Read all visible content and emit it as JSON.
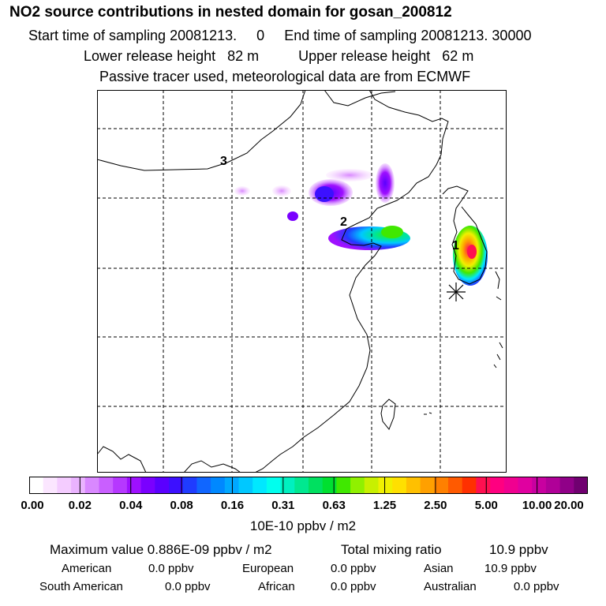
{
  "title": "NO2 source contributions in nested domain for gosan_200812",
  "header": {
    "start_label": "Start time of sampling",
    "start_value": "20081213.     0",
    "end_label": "End time of sampling",
    "end_value": "20081213. 30000",
    "lower_label": "Lower release height",
    "lower_value": "82 m",
    "upper_label": "Upper release height",
    "upper_value": "62 m",
    "tracer_note": "Passive tracer used, meteorological data are from ECMWF"
  },
  "map": {
    "markers": [
      {
        "label": "1",
        "name": "source-region-1"
      },
      {
        "label": "2",
        "name": "source-region-2"
      },
      {
        "label": "3",
        "name": "source-region-3"
      }
    ],
    "receptor_symbol": "asterisk",
    "colors": {
      "grid": "#000000",
      "coast": "#000000"
    }
  },
  "colorbar": {
    "ticks": [
      "0.00",
      "0.02",
      "0.04",
      "0.08",
      "0.16",
      "0.31",
      "0.63",
      "1.25",
      "2.50",
      "5.00",
      "10.00",
      "20.00"
    ],
    "colors": [
      "#ffffff",
      "#fbe6ff",
      "#f4ccff",
      "#eab3ff",
      "#d988ff",
      "#c95fff",
      "#b638ff",
      "#9e10ff",
      "#7a00ff",
      "#5a00ff",
      "#3c10ff",
      "#1f3cff",
      "#1066ff",
      "#0088ff",
      "#00a8ff",
      "#00c8ff",
      "#00e8ff",
      "#00ffee",
      "#00f0c0",
      "#00e890",
      "#00e060",
      "#00e030",
      "#40e800",
      "#90f000",
      "#c8f000",
      "#f0f000",
      "#ffe000",
      "#ffc000",
      "#ffa000",
      "#ff8000",
      "#ff5a00",
      "#ff3000",
      "#ff1050",
      "#ff0080",
      "#f00090",
      "#e000a0",
      "#c800a0",
      "#b00098",
      "#900088",
      "#700070"
    ],
    "units": "10E-10 ppbv / m2"
  },
  "stats": {
    "max_label": "Maximum value",
    "max_value": "0.886E-09 ppbv / m2",
    "total_label": "Total mixing ratio",
    "total_value": "10.9 ppbv"
  },
  "regions": [
    {
      "name": "American",
      "value": "0.0 ppbv"
    },
    {
      "name": "European",
      "value": "0.0 ppbv"
    },
    {
      "name": "Asian",
      "value": "10.9 ppbv"
    },
    {
      "name": "South American",
      "value": "0.0 ppbv"
    },
    {
      "name": "African",
      "value": "0.0 ppbv"
    },
    {
      "name": "Australian",
      "value": "0.0 ppbv"
    }
  ]
}
